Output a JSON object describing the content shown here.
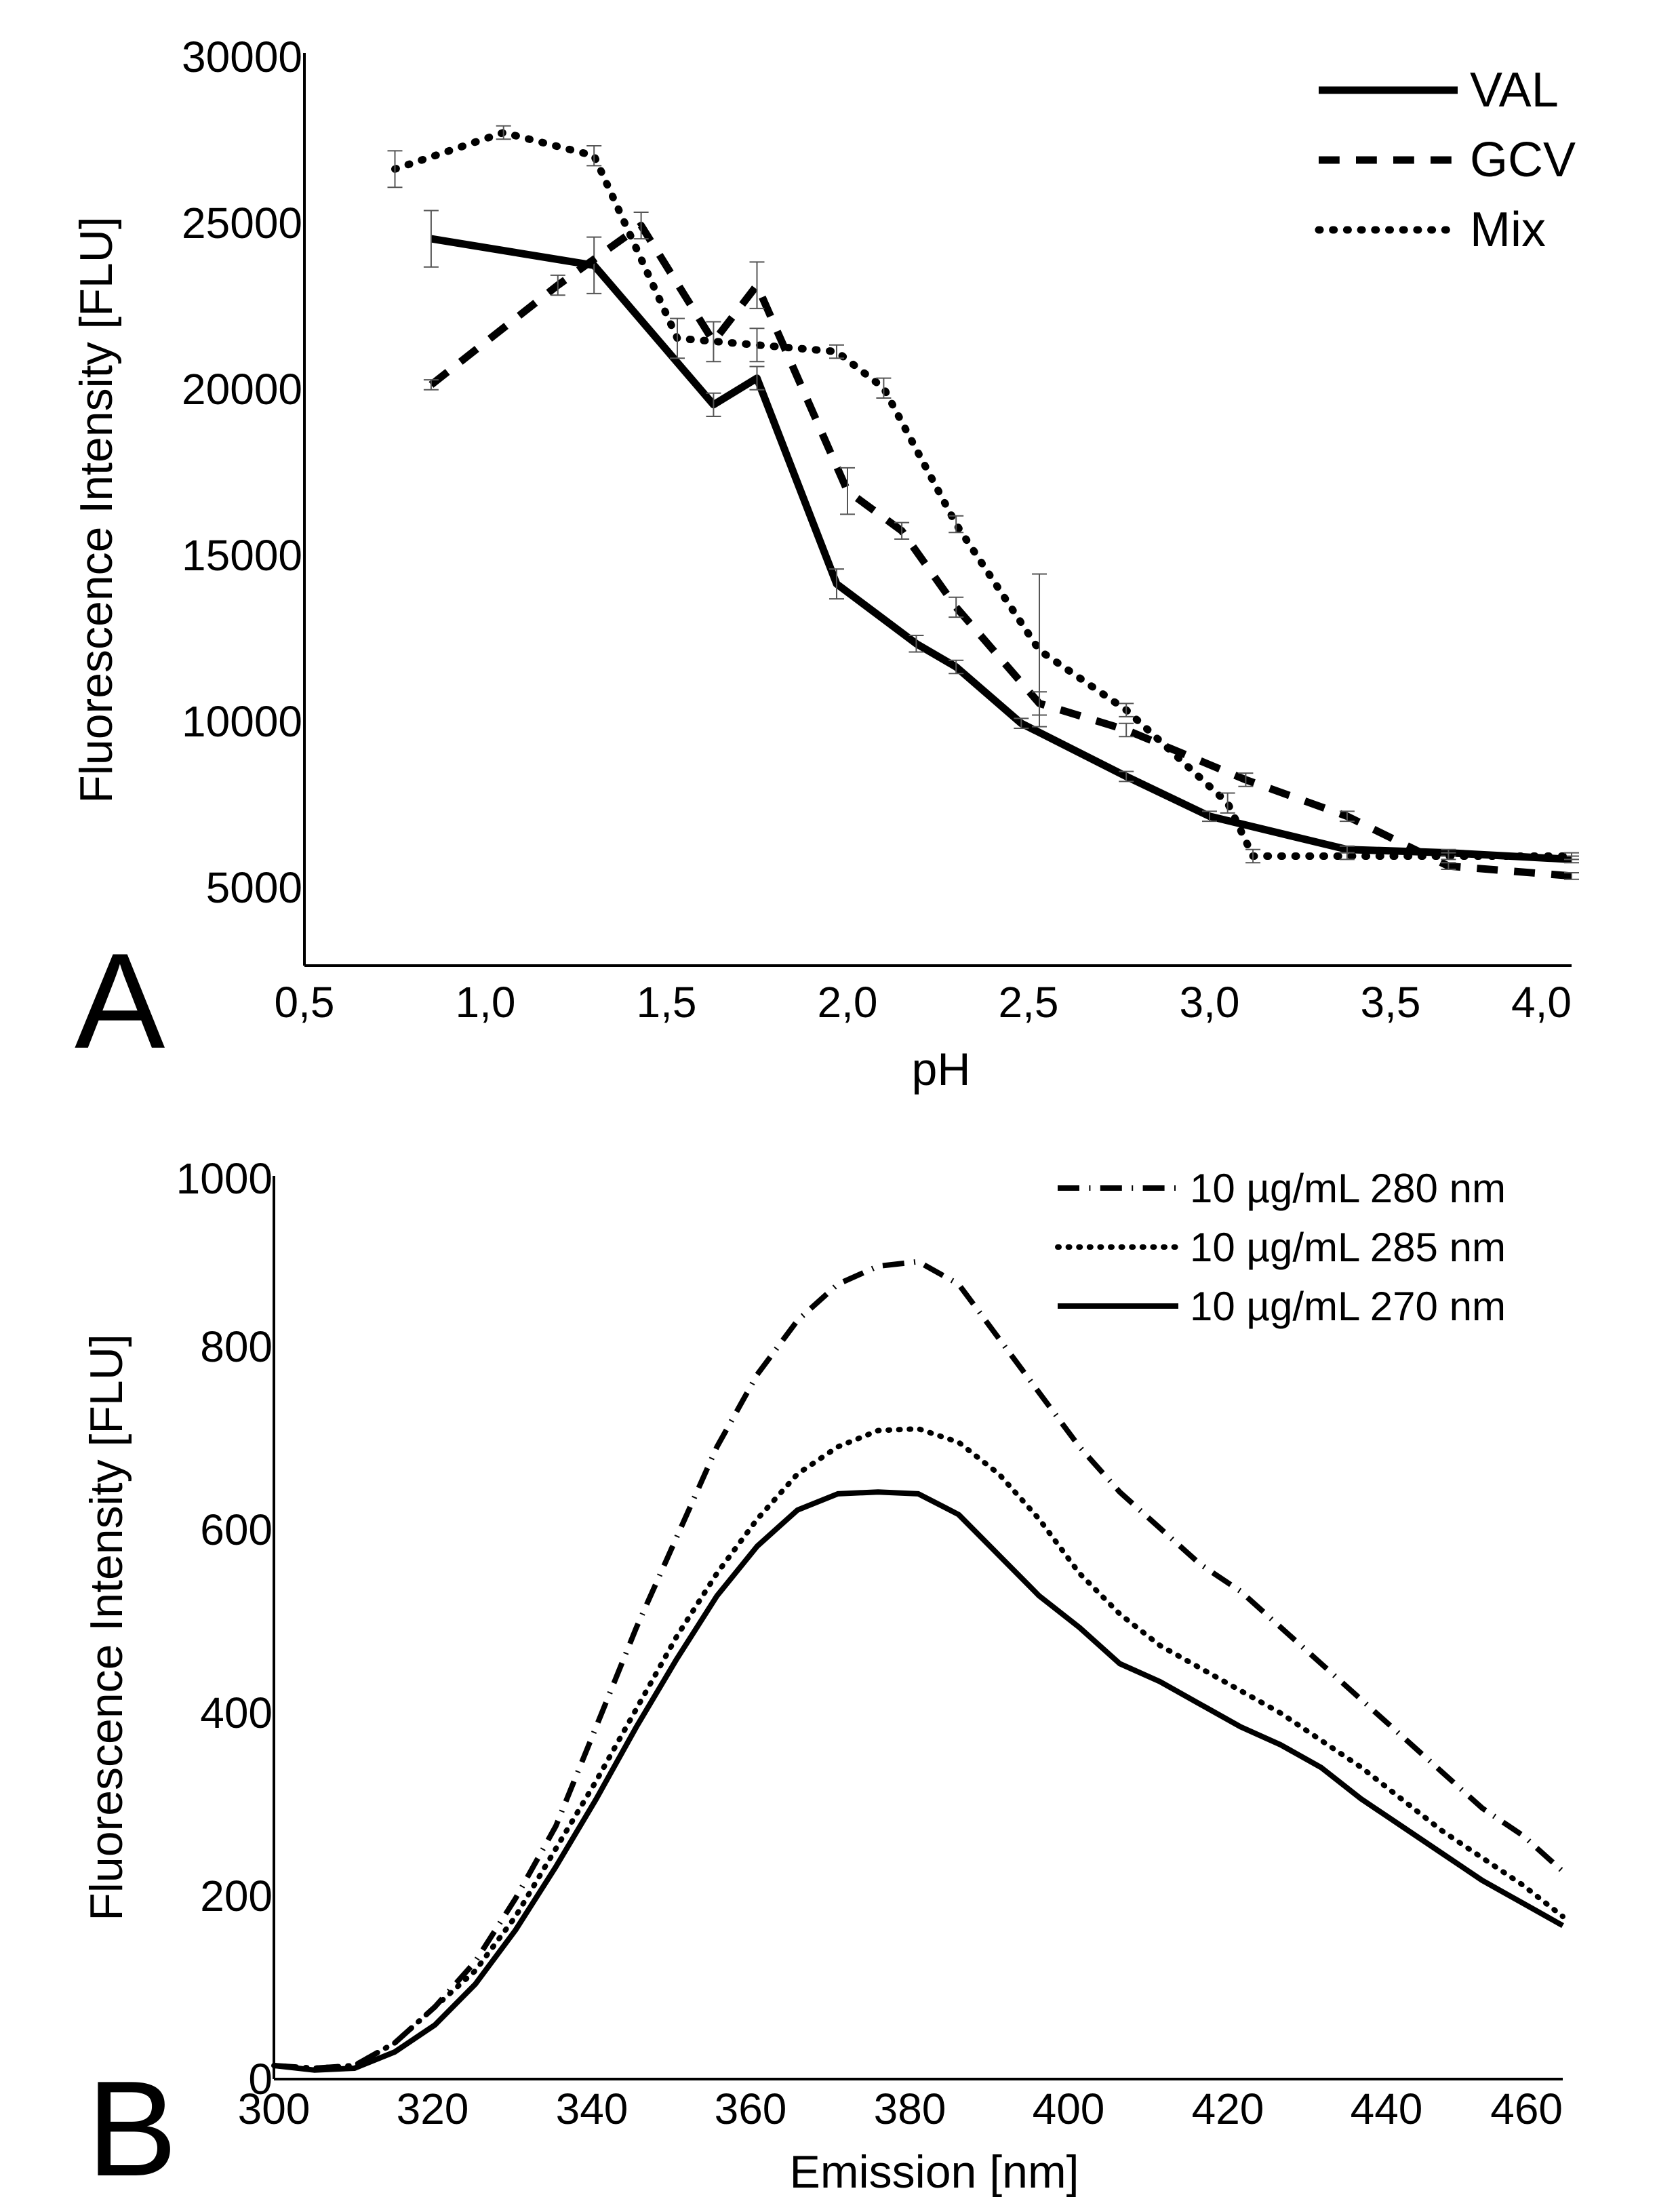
{
  "panels": {
    "a": {
      "letter": "A",
      "xlabel": "pH",
      "ylabel": "Fluorescence Intensity [FLU]",
      "xtick_labels": [
        "0,5",
        "1,0",
        "1,5",
        "2,0",
        "2,5",
        "3,0",
        "3,5",
        "4,0"
      ],
      "ytick_labels": [
        "5000",
        "10000",
        "15000",
        "20000",
        "25000",
        "30000"
      ]
    },
    "b": {
      "letter": "B",
      "xlabel": "Emission [nm]",
      "ylabel": "Fluorescence Intensity [FLU]",
      "xtick_labels": [
        "300",
        "320",
        "340",
        "360",
        "380",
        "400",
        "420",
        "440",
        "460"
      ],
      "ytick_labels": [
        "0",
        "200",
        "400",
        "600",
        "800",
        "1000"
      ]
    }
  },
  "chart_data": [
    {
      "type": "line",
      "panel": "A",
      "title": "",
      "xlabel": "pH",
      "ylabel": "Fluorescence Intensity [FLU]",
      "xlim": [
        0.5,
        4.0
      ],
      "ylim": [
        2500,
        30000
      ],
      "xticks": [
        0.5,
        1.0,
        1.5,
        2.0,
        2.5,
        3.0,
        3.5,
        4.0
      ],
      "yticks": [
        5000,
        10000,
        15000,
        20000,
        25000,
        30000
      ],
      "grid": false,
      "legend_position": "top-right",
      "series": [
        {
          "name": "VAL",
          "style": "solid",
          "color": "#000000",
          "x": [
            0.85,
            1.3,
            1.63,
            1.75,
            1.97,
            2.19,
            2.3,
            2.48,
            2.77,
            3.0,
            3.38,
            3.66,
            4.0
          ],
          "y": [
            24400,
            23600,
            19400,
            20200,
            14000,
            12200,
            11500,
            9800,
            8200,
            7000,
            6000,
            5900,
            5700
          ],
          "yerr": [
            850,
            850,
            350,
            350,
            450,
            250,
            200,
            150,
            150,
            150,
            100,
            100,
            100
          ]
        },
        {
          "name": "GCV",
          "style": "dashed",
          "color": "#000000",
          "x": [
            0.85,
            1.2,
            1.43,
            1.63,
            1.75,
            2.0,
            2.15,
            2.3,
            2.53,
            2.77,
            3.1,
            3.38,
            3.66,
            4.0
          ],
          "y": [
            20000,
            23000,
            24800,
            21300,
            23000,
            16800,
            15600,
            13300,
            10400,
            9600,
            8100,
            7000,
            5500,
            5200
          ],
          "yerr": [
            150,
            300,
            400,
            600,
            700,
            700,
            250,
            300,
            350,
            200,
            200,
            150,
            100,
            100
          ]
        },
        {
          "name": "Mix",
          "style": "dotted",
          "color": "#000000",
          "x": [
            0.75,
            1.05,
            1.3,
            1.53,
            1.75,
            1.97,
            2.1,
            2.3,
            2.53,
            2.77,
            3.05,
            3.12,
            3.38,
            3.66,
            4.0
          ],
          "y": [
            26500,
            27600,
            26900,
            21400,
            21200,
            21000,
            19900,
            15800,
            12000,
            10200,
            7400,
            5800,
            5800,
            5800,
            5800
          ],
          "yerr": [
            550,
            200,
            300,
            600,
            500,
            200,
            300,
            250,
            2300,
            200,
            300,
            200,
            100,
            100,
            100
          ]
        }
      ]
    },
    {
      "type": "line",
      "panel": "B",
      "title": "",
      "xlabel": "Emission [nm]",
      "ylabel": "Fluorescence Intensity [FLU]",
      "xlim": [
        300,
        460
      ],
      "ylim": [
        0,
        1000
      ],
      "xticks": [
        300,
        320,
        340,
        360,
        380,
        400,
        420,
        440,
        460
      ],
      "yticks": [
        0,
        200,
        400,
        600,
        800,
        1000
      ],
      "grid": false,
      "legend_position": "top-right",
      "series": [
        {
          "name": "10 µg/mL 280 nm",
          "style": "dash-dot",
          "color": "#000000",
          "x": [
            300,
            305,
            310,
            315,
            320,
            325,
            330,
            335,
            340,
            345,
            350,
            355,
            360,
            365,
            370,
            375,
            380,
            385,
            390,
            395,
            400,
            405,
            410,
            415,
            420,
            425,
            430,
            435,
            440,
            445,
            450,
            455,
            460
          ],
          "y": [
            15,
            12,
            15,
            40,
            80,
            130,
            200,
            280,
            390,
            500,
            600,
            700,
            780,
            840,
            880,
            900,
            905,
            880,
            820,
            760,
            700,
            650,
            610,
            570,
            540,
            500,
            460,
            420,
            380,
            340,
            300,
            270,
            230
          ]
        },
        {
          "name": "10 µg/mL 285 nm",
          "style": "dotted",
          "color": "#000000",
          "x": [
            300,
            305,
            310,
            315,
            320,
            325,
            330,
            335,
            340,
            345,
            350,
            355,
            360,
            365,
            370,
            375,
            380,
            385,
            390,
            395,
            400,
            405,
            410,
            415,
            420,
            425,
            430,
            435,
            440,
            445,
            450,
            455,
            460
          ],
          "y": [
            15,
            12,
            15,
            40,
            80,
            120,
            180,
            255,
            330,
            410,
            490,
            560,
            620,
            670,
            700,
            718,
            720,
            705,
            670,
            620,
            560,
            515,
            480,
            455,
            430,
            405,
            375,
            345,
            310,
            275,
            245,
            215,
            180
          ]
        },
        {
          "name": "10 µg/mL 270 nm",
          "style": "solid",
          "color": "#000000",
          "x": [
            300,
            305,
            310,
            315,
            320,
            325,
            330,
            335,
            340,
            345,
            350,
            355,
            360,
            365,
            370,
            375,
            380,
            385,
            390,
            395,
            400,
            405,
            410,
            415,
            420,
            425,
            430,
            435,
            440,
            445,
            450,
            455,
            460
          ],
          "y": [
            15,
            10,
            12,
            30,
            60,
            105,
            165,
            235,
            310,
            390,
            465,
            535,
            590,
            630,
            648,
            650,
            648,
            625,
            580,
            535,
            500,
            460,
            440,
            415,
            390,
            370,
            345,
            310,
            280,
            250,
            220,
            195,
            170
          ]
        }
      ]
    }
  ]
}
